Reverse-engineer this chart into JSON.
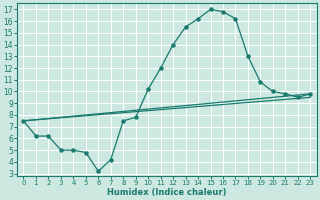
{
  "xlabel": "Humidex (Indice chaleur)",
  "ylabel": "",
  "xlim": [
    -0.5,
    23.5
  ],
  "ylim": [
    2.8,
    17.5
  ],
  "xticks": [
    0,
    1,
    2,
    3,
    4,
    5,
    6,
    7,
    8,
    9,
    10,
    11,
    12,
    13,
    14,
    15,
    16,
    17,
    18,
    19,
    20,
    21,
    22,
    23
  ],
  "yticks": [
    3,
    4,
    5,
    6,
    7,
    8,
    9,
    10,
    11,
    12,
    13,
    14,
    15,
    16,
    17
  ],
  "bg_color": "#cce8e0",
  "grid_color": "#ffffff",
  "line_color": "#1a7a6e",
  "line1_x": [
    0,
    1,
    2,
    3,
    4,
    5,
    6,
    7,
    8,
    9,
    10,
    11,
    12,
    13,
    14,
    15,
    16,
    17,
    18,
    19,
    20,
    21,
    22,
    23
  ],
  "line1_y": [
    7.5,
    6.2,
    6.2,
    5.0,
    5.0,
    4.8,
    3.2,
    4.2,
    7.5,
    7.8,
    10.2,
    12.0,
    14.0,
    15.5,
    16.2,
    17.0,
    16.8,
    16.2,
    13.0,
    10.8,
    10.0,
    9.8,
    9.5,
    9.8
  ],
  "line2_x": [
    0,
    23
  ],
  "line2_y": [
    7.5,
    9.8
  ],
  "line3_x": [
    0,
    23
  ],
  "line3_y": [
    7.5,
    9.5
  ]
}
